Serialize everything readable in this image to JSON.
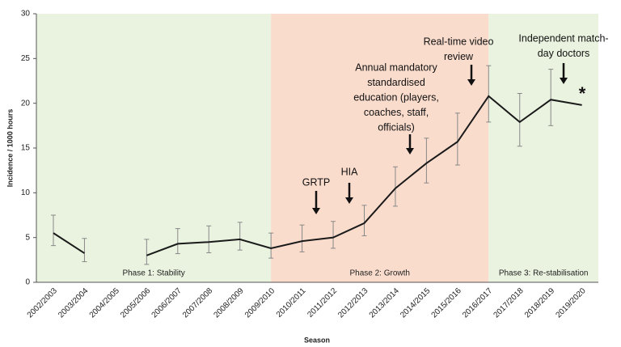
{
  "chart_data": {
    "type": "line",
    "xlabel": "Season",
    "ylabel": "Incidence / 1000 hours",
    "categories": [
      "2002/2003",
      "2003/2004",
      "2004/2005",
      "2005/2006",
      "2006/2007",
      "2007/2008",
      "2008/2009",
      "2009/2010",
      "2010/2011",
      "2011/2012",
      "2012/2013",
      "2013/2014",
      "2014/2015",
      "2015/2016",
      "2016/2017",
      "2017/2018",
      "2018/2019",
      "2019/2020"
    ],
    "values": [
      5.5,
      3.25,
      null,
      3.0,
      4.3,
      4.5,
      4.8,
      3.8,
      4.6,
      5.0,
      6.6,
      10.5,
      13.3,
      15.7,
      20.8,
      17.9,
      20.4,
      19.8
    ],
    "lower": [
      4.1,
      2.3,
      null,
      2.0,
      3.2,
      3.3,
      3.6,
      2.7,
      3.4,
      3.8,
      5.2,
      8.5,
      11.1,
      13.1,
      17.9,
      15.2,
      17.5,
      null
    ],
    "upper": [
      7.5,
      4.9,
      null,
      4.8,
      6.0,
      6.3,
      6.7,
      5.5,
      6.4,
      6.8,
      8.6,
      12.9,
      16.1,
      18.9,
      24.2,
      21.1,
      23.8,
      null
    ],
    "color": "#1a1a1a",
    "ylim": [
      0,
      30
    ],
    "yticks": [
      0,
      5,
      10,
      15,
      20,
      25,
      30
    ],
    "phases": [
      {
        "label": "Phase 1: Stability",
        "end": "2009/2010",
        "color": "#e9f3df"
      },
      {
        "label": "Phase 2: Growth",
        "start": "2009/2010",
        "end": "2016/2017",
        "color": "#fadccd"
      },
      {
        "label": "Phase 3: Re-stabilisation",
        "start": "2016/2017",
        "color": "#e9f3df"
      }
    ],
    "annotations": [
      {
        "lines": [
          "GRTP"
        ]
      },
      {
        "lines": [
          "HIA"
        ]
      },
      {
        "lines": [
          "Annual mandatory",
          "standardised",
          "education (players,",
          "coaches, staff,",
          "officials)"
        ]
      },
      {
        "lines": [
          "Real-time video",
          "review"
        ]
      },
      {
        "lines": [
          "Independent match-",
          "day doctors"
        ]
      },
      {
        "lines": [
          "*"
        ]
      }
    ]
  }
}
